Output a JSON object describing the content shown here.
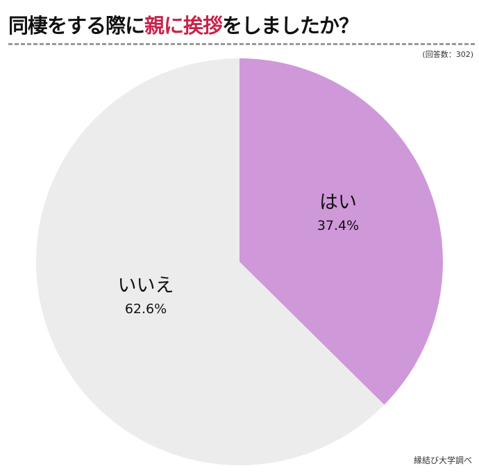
{
  "title": {
    "part1": "同棲をする際に",
    "highlight": "親に挨拶",
    "part2": "をしましたか？"
  },
  "colors": {
    "highlight": "#c8234a",
    "はい": "#cf98d9",
    "いいえ": "#ececec"
  },
  "respondents": "(回答数：302)",
  "source": "縁結び大学調べ",
  "chart_data": {
    "type": "pie",
    "categories": [
      "はい",
      "いいえ"
    ],
    "values": [
      37.4,
      62.6
    ],
    "labels": [
      "37.4%",
      "62.6%"
    ],
    "start": "top, clockwise"
  }
}
